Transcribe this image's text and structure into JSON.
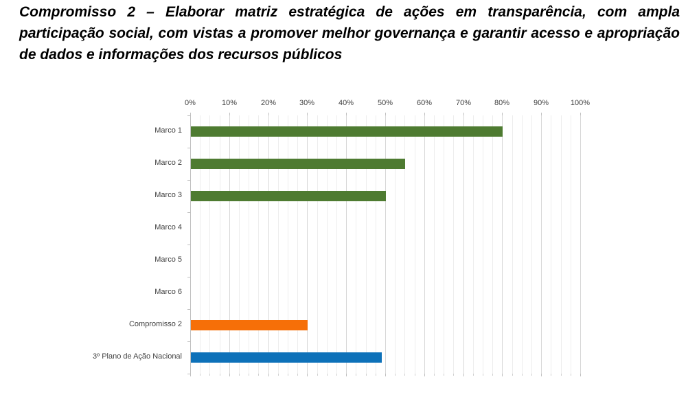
{
  "page": {
    "background_color": "#ffffff"
  },
  "title": {
    "text": "Compromisso 2 – Elaborar matriz estratégica de ações em transparência, com ampla participação social, com vistas a promover melhor governança e garantir acesso e apropriação de dados e informações dos recursos públicos"
  },
  "chart_data": {
    "type": "bar",
    "orientation": "horizontal",
    "title": "",
    "categories": [
      "Marco 1",
      "Marco 2",
      "Marco 3",
      "Marco 4",
      "Marco 5",
      "Marco 6",
      "Compromisso 2",
      "3º Plano de Ação Nacional"
    ],
    "values": [
      80,
      55,
      50,
      0,
      0,
      0,
      30,
      49
    ],
    "unit": "%",
    "bar_colors": [
      "#4e7b31",
      "#4e7b31",
      "#4e7b31",
      "#4e7b31",
      "#4e7b31",
      "#4e7b31",
      "#f66f08",
      "#0d71b9"
    ],
    "axis": {
      "position": "top",
      "min": 0,
      "max": 100,
      "major_step": 10,
      "minor_step": 2.5,
      "tick_labels": [
        "0%",
        "10%",
        "20%",
        "30%",
        "40%",
        "50%",
        "60%",
        "70%",
        "80%",
        "90%",
        "100%"
      ]
    },
    "grid": {
      "major_gridlines": true,
      "minor_gridlines": true,
      "major_color": "#d7d7d7",
      "minor_color": "#ededed",
      "axis_color": "#bfbfbf"
    },
    "legend": "none",
    "data_labels": false
  },
  "colors": {
    "marco_green": "#4e7b31",
    "compromisso_orange": "#f66f08",
    "plano_blue": "#0d71b9",
    "label_text": "#3f3f3f",
    "title_text": "#000000"
  }
}
